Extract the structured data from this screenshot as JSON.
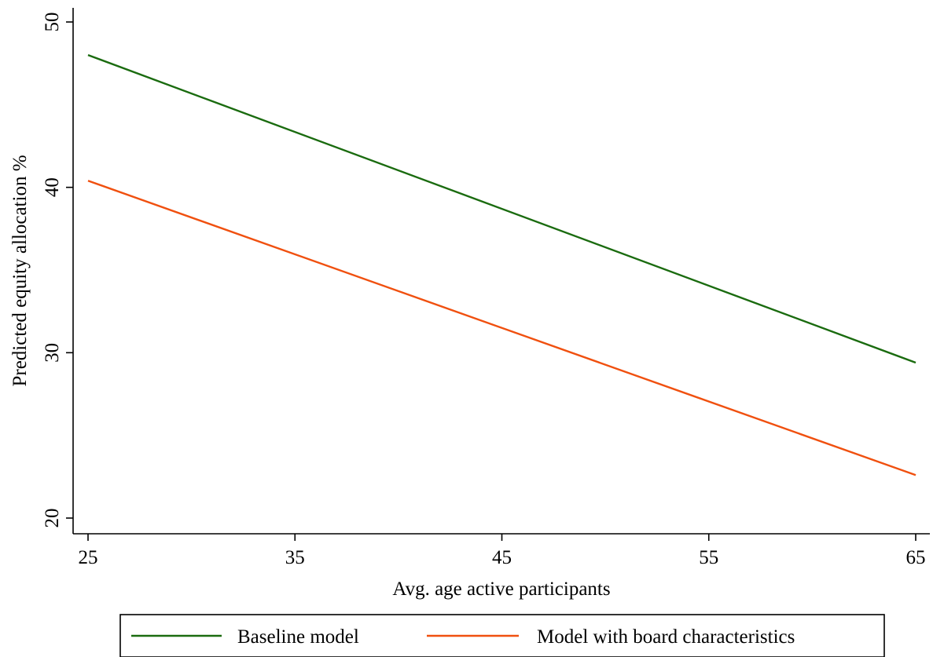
{
  "chart_data": {
    "type": "line",
    "title": "",
    "xlabel": "Avg. age active participants",
    "ylabel": "Predicted equity allocation %",
    "xlim": [
      25,
      65
    ],
    "ylim": [
      20,
      50
    ],
    "x_ticks": [
      "25",
      "35",
      "45",
      "55",
      "65"
    ],
    "y_ticks": [
      "20",
      "30",
      "40",
      "50"
    ],
    "grid": false,
    "legend_position": "bottom",
    "series": [
      {
        "name": "Baseline model",
        "color": "#1a6b0f",
        "x": [
          25,
          65
        ],
        "y": [
          48.0,
          29.4
        ]
      },
      {
        "name": "Model with board characteristics",
        "color": "#f0500f",
        "x": [
          25,
          65
        ],
        "y": [
          40.4,
          22.6
        ]
      }
    ]
  }
}
